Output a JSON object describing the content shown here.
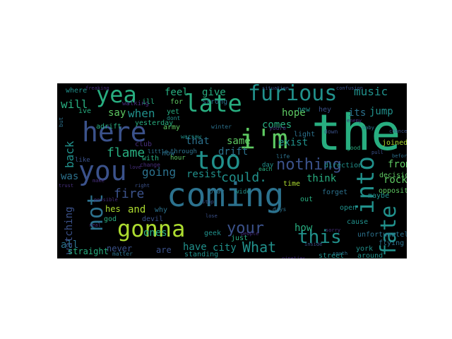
{
  "palette": {
    "background": "#000000",
    "page": "#ffffff",
    "tones": [
      "#440154",
      "#472f7d",
      "#3b528b",
      "#2c728e",
      "#21918c",
      "#28ae80",
      "#5ec962",
      "#addc30",
      "#fde725"
    ]
  },
  "words": [
    {
      "text": "coming",
      "tone": 3
    },
    {
      "text": "the",
      "tone": 5
    },
    {
      "text": "here",
      "tone": 2
    },
    {
      "text": "you",
      "tone": 2
    },
    {
      "text": "too",
      "tone": 4
    },
    {
      "text": "late",
      "tone": 5
    },
    {
      "text": "i'm",
      "tone": 6
    },
    {
      "text": "yea",
      "tone": 5
    },
    {
      "text": "furious",
      "tone": 4
    },
    {
      "text": "gonna",
      "tone": 7
    },
    {
      "text": "into",
      "tone": 4
    },
    {
      "text": "fate",
      "tone": 4
    },
    {
      "text": "not",
      "tone": 3
    },
    {
      "text": "this",
      "tone": 4
    },
    {
      "text": "your",
      "tone": 2
    },
    {
      "text": "nothing",
      "tone": 2
    },
    {
      "text": "What",
      "tone": 4
    },
    {
      "text": "fire",
      "tone": 2
    },
    {
      "text": "flame",
      "tone": 5
    },
    {
      "text": "could.",
      "tone": 4
    },
    {
      "text": "going",
      "tone": 3
    },
    {
      "text": "back",
      "tone": 4
    },
    {
      "text": "when",
      "tone": 4
    },
    {
      "text": "feel",
      "tone": 5
    },
    {
      "text": "give",
      "tone": 5
    },
    {
      "text": "music",
      "tone": 4
    },
    {
      "text": "will",
      "tone": 5
    },
    {
      "text": "say",
      "tone": 6
    },
    {
      "text": "hope",
      "tone": 6
    },
    {
      "text": "its",
      "tone": 3
    },
    {
      "text": "jump",
      "tone": 4
    },
    {
      "text": "comes",
      "tone": 5
    },
    {
      "text": "exist",
      "tone": 4
    },
    {
      "text": "think",
      "tone": 5
    },
    {
      "text": "rock",
      "tone": 6
    },
    {
      "text": "from",
      "tone": 6
    },
    {
      "text": "was",
      "tone": 3
    },
    {
      "text": "ones",
      "tone": 5
    },
    {
      "text": "have",
      "tone": 4
    },
    {
      "text": "city",
      "tone": 4
    },
    {
      "text": "watching",
      "tone": 2
    },
    {
      "text": "resist",
      "tone": 4
    },
    {
      "text": "that",
      "tone": 3
    },
    {
      "text": "same",
      "tone": 6
    },
    {
      "text": "drift",
      "tone": 3
    },
    {
      "text": "hes",
      "tone": 7
    },
    {
      "text": "and",
      "tone": 7
    },
    {
      "text": "how",
      "tone": 5
    },
    {
      "text": "all",
      "tone": 3
    },
    {
      "text": "never",
      "tone": 2
    },
    {
      "text": "are",
      "tone": 2
    },
    {
      "text": "straight",
      "tone": 5
    },
    {
      "text": "direction",
      "tone": 4
    },
    {
      "text": "decision",
      "tone": 6
    },
    {
      "text": "opposite",
      "tone": 6
    },
    {
      "text": "joined",
      "tone": 7
    },
    {
      "text": "york",
      "tone": 4
    },
    {
      "text": "out",
      "tone": 5
    },
    {
      "text": "time",
      "tone": 7
    },
    {
      "text": "light",
      "tone": 3
    },
    {
      "text": "new",
      "tone": 4
    },
    {
      "text": "hey",
      "tone": 2
    },
    {
      "text": "club",
      "tone": 1
    },
    {
      "text": "army",
      "tone": 6
    },
    {
      "text": "yesterday",
      "tone": 5
    },
    {
      "text": "adrift",
      "tone": 5
    },
    {
      "text": "where",
      "tone": 4
    },
    {
      "text": "strong",
      "tone": 3
    },
    {
      "text": "devil",
      "tone": 2
    },
    {
      "text": "now",
      "tone": 3
    },
    {
      "text": "god",
      "tone": 5
    },
    {
      "text": "just",
      "tone": 5
    },
    {
      "text": "forget",
      "tone": 3
    },
    {
      "text": "cause",
      "tone": 4
    },
    {
      "text": "street",
      "tone": 4
    },
    {
      "text": "around",
      "tone": 4
    },
    {
      "text": "standing",
      "tone": 4
    },
    {
      "text": "maybe",
      "tone": 4
    },
    {
      "text": "flying",
      "tone": 3
    },
    {
      "text": "unfortunately",
      "tone": 3
    },
    {
      "text": "open",
      "tone": 4
    },
    {
      "text": "geek",
      "tone": 4
    },
    {
      "text": "play",
      "tone": 3
    },
    {
      "text": "wide",
      "tone": 4
    },
    {
      "text": "ive",
      "tone": 5
    },
    {
      "text": "with",
      "tone": 5
    },
    {
      "text": "why",
      "tone": 3
    },
    {
      "text": "for",
      "tone": 6
    },
    {
      "text": "yet",
      "tone": 5
    },
    {
      "text": "walking",
      "tone": 1
    },
    {
      "text": "ill",
      "tone": 5
    },
    {
      "text": "dont",
      "tone": 4
    },
    {
      "text": "warsaw",
      "tone": 4
    },
    {
      "text": "little",
      "tone": 3
    },
    {
      "text": "change",
      "tone": 1
    },
    {
      "text": "through",
      "tone": 3
    },
    {
      "text": "hour",
      "tone": 6
    },
    {
      "text": "life",
      "tone": 3
    },
    {
      "text": "day",
      "tone": 4
    },
    {
      "text": "each",
      "tone": 5
    },
    {
      "text": "good",
      "tone": 5
    },
    {
      "text": "before",
      "tone": 3
    },
    {
      "text": "down",
      "tone": 2
    },
    {
      "text": "days",
      "tone": 3
    },
    {
      "text": "youre",
      "tone": 1
    },
    {
      "text": "south",
      "tone": 3
    },
    {
      "text": "winter",
      "tone": 3
    },
    {
      "text": "matter",
      "tone": 3
    },
    {
      "text": "situation",
      "tone": 2
    },
    {
      "text": "confusion",
      "tone": 2
    },
    {
      "text": "freaking",
      "tone": 1
    },
    {
      "text": "baby",
      "tone": 3
    },
    {
      "text": "enemy",
      "tone": 1
    },
    {
      "text": "stop",
      "tone": 2
    },
    {
      "text": "people",
      "tone": 1
    },
    {
      "text": "inside",
      "tone": 2
    },
    {
      "text": "nineties",
      "tone": 1
    },
    {
      "text": "sorry",
      "tone": 1
    },
    {
      "text": "lose",
      "tone": 2
    },
    {
      "text": "real",
      "tone": 1
    },
    {
      "text": "chance",
      "tone": 2
    },
    {
      "text": "possible",
      "tone": 1
    },
    {
      "text": "pull",
      "tone": 2
    },
    {
      "text": "love",
      "tone": 1
    },
    {
      "text": "right",
      "tone": 2
    },
    {
      "text": "make",
      "tone": 1
    },
    {
      "text": "but",
      "tone": 3
    },
    {
      "text": "like",
      "tone": 2
    },
    {
      "text": "trust",
      "tone": 1
    }
  ]
}
